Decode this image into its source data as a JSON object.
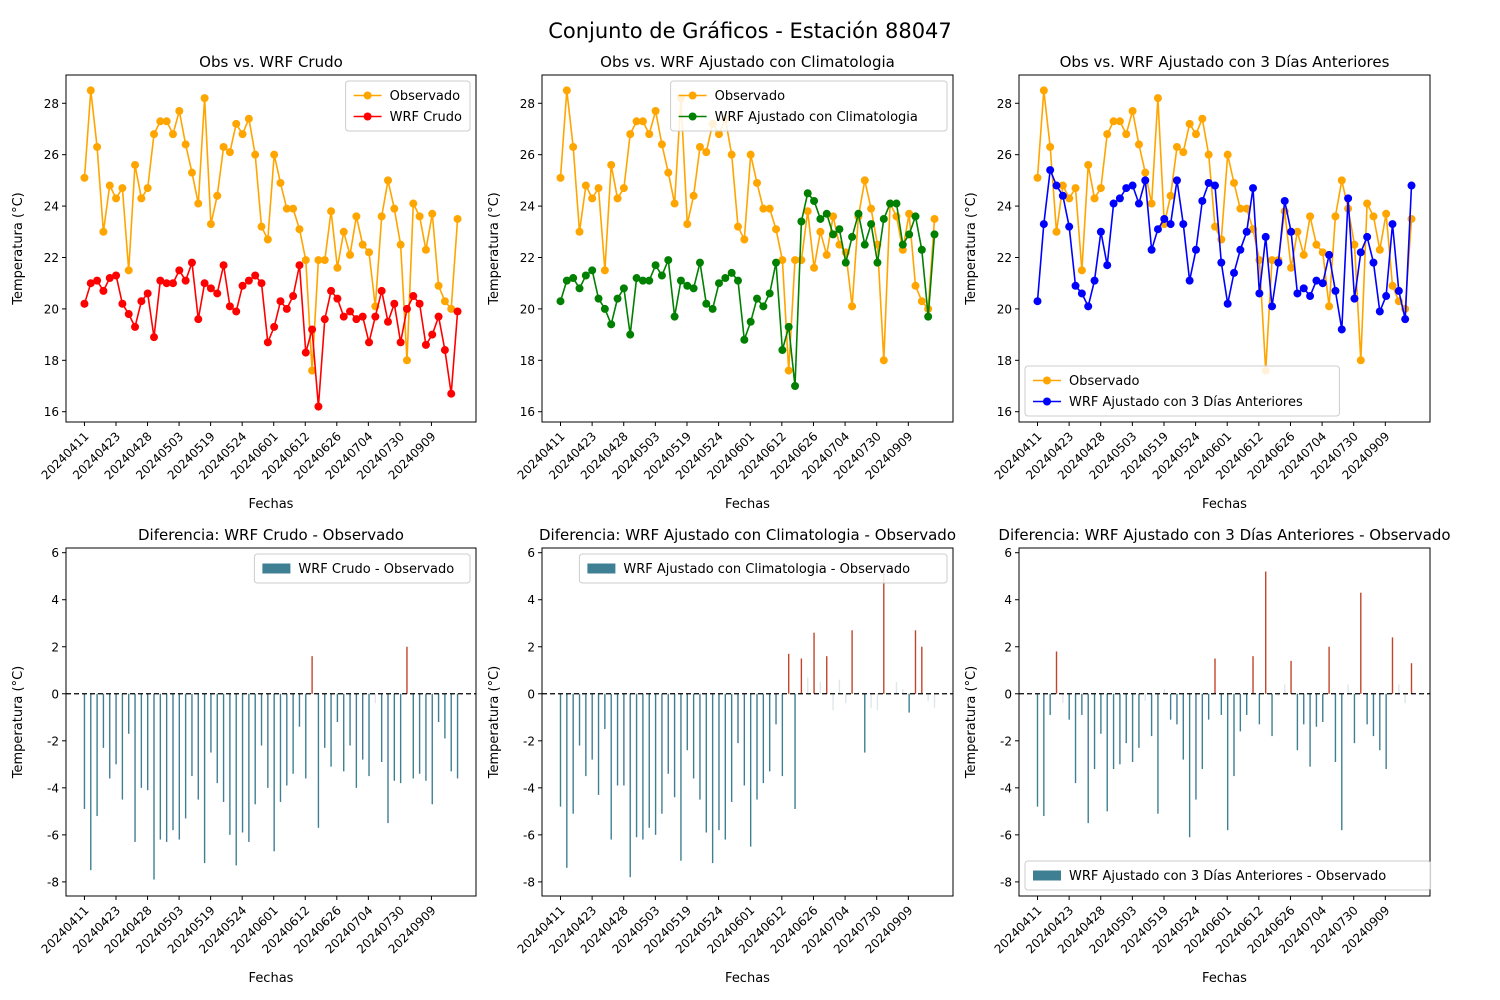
{
  "figure": {
    "title": "Conjunto de Gráficos - Estación 88047"
  },
  "colors": {
    "observed": "#ffa500",
    "raw": "#ff0000",
    "clim": "#008000",
    "prev3": "#0000ff",
    "bar_neg": "#3f7f93",
    "bar_pos": "#c2452b",
    "bar_small": "#dfe7ea"
  },
  "chart_data": [
    {
      "type": "line",
      "title": "Obs vs. WRF Crudo",
      "xlabel": "Fechas",
      "ylabel": "Temperatura (°C)",
      "ylim": [
        15.6,
        29.1
      ],
      "yticks": [
        16,
        18,
        20,
        22,
        24,
        26,
        28
      ],
      "xticks": [
        "20240411",
        "20240423",
        "20240428",
        "20240503",
        "20240519",
        "20240524",
        "20240601",
        "20240612",
        "20240626",
        "20240704",
        "20240730",
        "20240909"
      ],
      "legend": "top-right",
      "series": [
        {
          "name": "Observado",
          "color_key": "observed",
          "values": [
            25.1,
            28.5,
            26.3,
            23.0,
            24.8,
            24.3,
            24.7,
            21.5,
            25.6,
            24.3,
            24.7,
            26.8,
            27.3,
            27.3,
            26.8,
            27.7,
            26.4,
            25.3,
            24.1,
            28.2,
            23.3,
            24.4,
            26.3,
            26.1,
            27.2,
            26.8,
            27.4,
            26.0,
            23.2,
            22.7,
            26.0,
            24.9,
            23.9,
            23.9,
            23.1,
            21.9,
            17.6,
            21.9,
            21.9,
            23.8,
            21.6,
            23.0,
            22.1,
            23.6,
            22.5,
            22.2,
            20.1,
            23.6,
            25.0,
            23.9,
            22.5,
            18.0,
            24.1,
            23.6,
            22.3,
            23.7,
            20.9,
            20.3,
            20.0,
            23.5
          ]
        },
        {
          "name": "WRF Crudo",
          "color_key": "raw",
          "values": [
            20.2,
            21.0,
            21.1,
            20.7,
            21.2,
            21.3,
            20.2,
            19.8,
            19.3,
            20.3,
            20.6,
            18.9,
            21.1,
            21.0,
            21.0,
            21.5,
            21.1,
            21.8,
            19.6,
            21.0,
            20.8,
            20.6,
            21.7,
            20.1,
            19.9,
            20.9,
            21.1,
            21.3,
            21.0,
            18.7,
            19.3,
            20.3,
            20.0,
            20.5,
            21.7,
            18.3,
            19.2,
            16.2,
            19.6,
            20.7,
            20.4,
            19.7,
            19.9,
            19.6,
            19.7,
            18.7,
            19.7,
            20.7,
            19.5,
            20.2,
            18.7,
            20.0,
            20.5,
            20.2,
            18.6,
            19.0,
            19.7,
            18.4,
            16.7,
            19.9
          ]
        }
      ]
    },
    {
      "type": "line",
      "title": "Obs vs. WRF Ajustado con Climatologia",
      "xlabel": "Fechas",
      "ylabel": "Temperatura (°C)",
      "ylim": [
        15.6,
        29.1
      ],
      "yticks": [
        16,
        18,
        20,
        22,
        24,
        26,
        28
      ],
      "xticks": [
        "20240411",
        "20240423",
        "20240428",
        "20240503",
        "20240519",
        "20240524",
        "20240601",
        "20240612",
        "20240626",
        "20240704",
        "20240730",
        "20240909"
      ],
      "legend": "top-right",
      "series": [
        {
          "name": "Observado",
          "color_key": "observed",
          "values": [
            25.1,
            28.5,
            26.3,
            23.0,
            24.8,
            24.3,
            24.7,
            21.5,
            25.6,
            24.3,
            24.7,
            26.8,
            27.3,
            27.3,
            26.8,
            27.7,
            26.4,
            25.3,
            24.1,
            28.2,
            23.3,
            24.4,
            26.3,
            26.1,
            27.2,
            26.8,
            27.4,
            26.0,
            23.2,
            22.7,
            26.0,
            24.9,
            23.9,
            23.9,
            23.1,
            21.9,
            17.6,
            21.9,
            21.9,
            23.8,
            21.6,
            23.0,
            22.1,
            23.6,
            22.5,
            22.2,
            20.1,
            23.6,
            25.0,
            23.9,
            22.5,
            18.0,
            24.1,
            23.6,
            22.3,
            23.7,
            20.9,
            20.3,
            20.0,
            23.5
          ]
        },
        {
          "name": "WRF Ajustado con Climatologia",
          "color_key": "clim",
          "values": [
            20.3,
            21.1,
            21.2,
            20.8,
            21.3,
            21.5,
            20.4,
            20.0,
            19.4,
            20.4,
            20.8,
            19.0,
            21.2,
            21.1,
            21.1,
            21.7,
            21.3,
            21.9,
            19.7,
            21.1,
            20.9,
            20.8,
            21.8,
            20.2,
            20.0,
            21.0,
            21.2,
            21.4,
            21.1,
            18.8,
            19.5,
            20.4,
            20.1,
            20.6,
            21.8,
            18.4,
            19.3,
            17.0,
            23.4,
            24.5,
            24.2,
            23.5,
            23.7,
            22.9,
            23.1,
            21.8,
            22.8,
            23.7,
            22.5,
            23.3,
            21.8,
            23.5,
            24.1,
            24.1,
            22.5,
            22.9,
            23.6,
            22.3,
            19.7,
            22.9
          ]
        }
      ]
    },
    {
      "type": "line",
      "title": "Obs vs. WRF Ajustado con 3 Días Anteriores",
      "xlabel": "Fechas",
      "ylabel": "Temperatura (°C)",
      "ylim": [
        15.6,
        29.1
      ],
      "yticks": [
        16,
        18,
        20,
        22,
        24,
        26,
        28
      ],
      "xticks": [
        "20240411",
        "20240423",
        "20240428",
        "20240503",
        "20240519",
        "20240524",
        "20240601",
        "20240612",
        "20240626",
        "20240704",
        "20240730",
        "20240909"
      ],
      "legend": "bottom-left",
      "series": [
        {
          "name": "Observado",
          "color_key": "observed",
          "values": [
            25.1,
            28.5,
            26.3,
            23.0,
            24.8,
            24.3,
            24.7,
            21.5,
            25.6,
            24.3,
            24.7,
            26.8,
            27.3,
            27.3,
            26.8,
            27.7,
            26.4,
            25.3,
            24.1,
            28.2,
            23.3,
            24.4,
            26.3,
            26.1,
            27.2,
            26.8,
            27.4,
            26.0,
            23.2,
            22.7,
            26.0,
            24.9,
            23.9,
            23.9,
            23.1,
            21.9,
            17.6,
            21.9,
            21.9,
            23.8,
            21.6,
            23.0,
            22.1,
            23.6,
            22.5,
            22.2,
            20.1,
            23.6,
            25.0,
            23.9,
            22.5,
            18.0,
            24.1,
            23.6,
            22.3,
            23.7,
            20.9,
            20.3,
            20.0,
            23.5
          ]
        },
        {
          "name": "WRF Ajustado con 3 Días Anteriores",
          "color_key": "prev3",
          "values": [
            20.3,
            23.3,
            25.4,
            24.8,
            24.4,
            23.2,
            20.9,
            20.6,
            20.1,
            21.1,
            23.0,
            21.7,
            24.1,
            24.3,
            24.7,
            24.8,
            24.1,
            25.0,
            22.3,
            23.1,
            23.5,
            23.3,
            25.0,
            23.3,
            21.1,
            22.3,
            24.2,
            24.9,
            24.8,
            21.8,
            20.2,
            21.4,
            22.3,
            23.0,
            24.7,
            20.6,
            22.8,
            20.1,
            21.8,
            24.2,
            23.0,
            20.6,
            20.8,
            20.5,
            21.1,
            21.0,
            22.1,
            20.7,
            19.2,
            24.3,
            20.4,
            22.2,
            22.8,
            21.8,
            19.9,
            20.5,
            23.3,
            20.7,
            19.6,
            24.8
          ]
        }
      ]
    },
    {
      "type": "bar",
      "title": "Diferencia: WRF Crudo - Observado",
      "xlabel": "Fechas",
      "ylabel": "Temperatura (°C)",
      "ylim": [
        -8.6,
        6.2
      ],
      "yticks": [
        -8,
        -6,
        -4,
        -2,
        0,
        2,
        4,
        6
      ],
      "xticks": [
        "20240411",
        "20240423",
        "20240428",
        "20240503",
        "20240519",
        "20240524",
        "20240601",
        "20240612",
        "20240626",
        "20240704",
        "20240730",
        "20240909"
      ],
      "legend": "top-right",
      "series": [
        {
          "name": "WRF Crudo - Observado",
          "values": [
            -4.9,
            -7.5,
            -5.2,
            -2.3,
            -3.6,
            -3.0,
            -4.5,
            -1.7,
            -6.3,
            -4.0,
            -4.1,
            -7.9,
            -6.2,
            -6.3,
            -5.8,
            -6.2,
            -5.3,
            -3.5,
            -4.5,
            -7.2,
            -2.5,
            -3.8,
            -4.6,
            -6.0,
            -7.3,
            -5.9,
            -6.3,
            -4.7,
            -2.2,
            -4.0,
            -6.7,
            -4.6,
            -3.9,
            -3.4,
            -1.4,
            -3.6,
            1.6,
            -5.7,
            -2.3,
            -3.1,
            -1.2,
            -3.3,
            -2.2,
            -4.0,
            -2.8,
            -3.5,
            -0.4,
            -2.9,
            -5.5,
            -3.7,
            -3.8,
            2.0,
            -3.6,
            -3.4,
            -3.7,
            -4.7,
            -1.2,
            -1.9,
            -3.3,
            -3.6
          ]
        }
      ]
    },
    {
      "type": "bar",
      "title": "Diferencia: WRF Ajustado con Climatologia - Observado",
      "xlabel": "Fechas",
      "ylabel": "Temperatura (°C)",
      "ylim": [
        -8.6,
        6.2
      ],
      "yticks": [
        -8,
        -6,
        -4,
        -2,
        0,
        2,
        4,
        6
      ],
      "xticks": [
        "20240411",
        "20240423",
        "20240428",
        "20240503",
        "20240519",
        "20240524",
        "20240601",
        "20240612",
        "20240626",
        "20240704",
        "20240730",
        "20240909"
      ],
      "legend": "top-right",
      "series": [
        {
          "name": "WRF Ajustado con Climatologia - Observado",
          "values": [
            -4.8,
            -7.4,
            -5.1,
            -2.2,
            -3.5,
            -2.8,
            -4.3,
            -1.5,
            -6.2,
            -3.9,
            -3.9,
            -7.8,
            -6.1,
            -6.2,
            -5.7,
            -6.0,
            -5.1,
            -3.4,
            -4.4,
            -7.1,
            -2.4,
            -3.6,
            -4.5,
            -5.9,
            -7.2,
            -5.8,
            -6.2,
            -4.6,
            -2.1,
            -3.9,
            -6.5,
            -4.5,
            -3.8,
            -3.3,
            -1.3,
            -3.5,
            1.7,
            -4.9,
            1.5,
            0.7,
            2.6,
            0.5,
            1.6,
            -0.7,
            0.6,
            -0.4,
            2.7,
            0.1,
            -2.5,
            -0.6,
            -0.7,
            5.5,
            0.0,
            0.5,
            0.2,
            -0.8,
            2.7,
            2.0,
            -0.3,
            -0.6
          ]
        }
      ]
    },
    {
      "type": "bar",
      "title": "Diferencia: WRF Ajustado con 3 Días Anteriores - Observado",
      "xlabel": "Fechas",
      "ylabel": "Temperatura (°C)",
      "ylim": [
        -8.6,
        6.2
      ],
      "yticks": [
        -8,
        -6,
        -4,
        -2,
        0,
        2,
        4,
        6
      ],
      "xticks": [
        "20240411",
        "20240423",
        "20240428",
        "20240503",
        "20240519",
        "20240524",
        "20240601",
        "20240612",
        "20240626",
        "20240704",
        "20240730",
        "20240909"
      ],
      "legend": "bottom-left",
      "series": [
        {
          "name": "WRF Ajustado con 3 Días Anteriores - Observado",
          "values": [
            -4.8,
            -5.2,
            -0.9,
            1.8,
            -0.4,
            -1.1,
            -3.8,
            -0.9,
            -5.5,
            -3.2,
            -1.7,
            -5.0,
            -3.2,
            -3.0,
            -2.1,
            -2.9,
            -2.3,
            -0.3,
            -1.8,
            -5.1,
            0.2,
            -1.1,
            -1.3,
            -2.8,
            -6.1,
            -4.5,
            -3.2,
            -1.1,
            1.5,
            -0.9,
            -5.8,
            -3.5,
            -1.6,
            -0.9,
            1.6,
            -1.3,
            5.2,
            -1.8,
            -0.1,
            0.4,
            1.4,
            -2.4,
            -1.3,
            -3.1,
            -1.4,
            -1.2,
            2.0,
            -2.9,
            -5.8,
            0.4,
            -2.1,
            4.3,
            -1.3,
            -1.8,
            -2.4,
            -3.2,
            2.4,
            0.4,
            -0.4,
            1.3
          ]
        }
      ]
    }
  ]
}
